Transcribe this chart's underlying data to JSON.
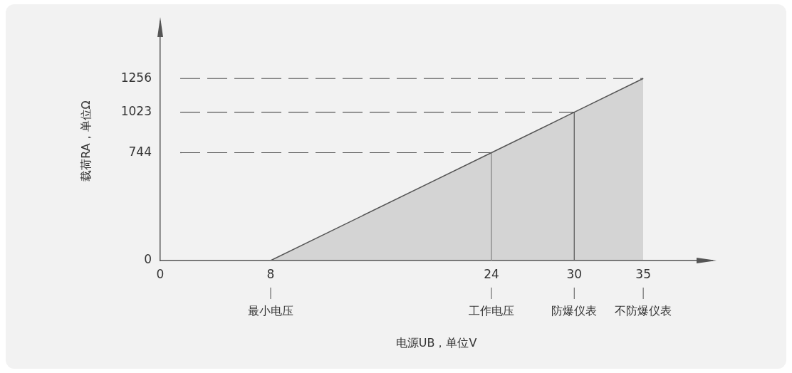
{
  "chart_data": {
    "type": "area",
    "xlabel": "电源UB，单位V",
    "ylabel": "载荷RA，单位Ω",
    "x": [
      8,
      24,
      30,
      35
    ],
    "series": [
      {
        "color": "#555555",
        "values": [
          0,
          744,
          1023,
          1256
        ]
      }
    ],
    "xlim": [
      0,
      40
    ],
    "xticks": [
      0,
      8,
      24,
      30,
      35
    ],
    "ylim": [
      0,
      1650
    ],
    "yticks": [
      0,
      744,
      1023,
      1256
    ],
    "ref_lines": [
      {
        "axis": "y",
        "value": 744,
        "line_style": "dashed"
      },
      {
        "axis": "y",
        "value": 1023,
        "line_style": "dashed"
      },
      {
        "axis": "y",
        "value": 1256,
        "line_style": "dashed"
      },
      {
        "axis": "x",
        "value": 24,
        "line_style": "solid",
        "color": "#888888"
      },
      {
        "axis": "x",
        "value": 30,
        "line_style": "solid",
        "color": "#555555"
      }
    ],
    "annotations": [
      "最小电压",
      "工作电压",
      "防爆仪表",
      "不防爆仪表"
    ],
    "grid": false,
    "legend": false
  }
}
